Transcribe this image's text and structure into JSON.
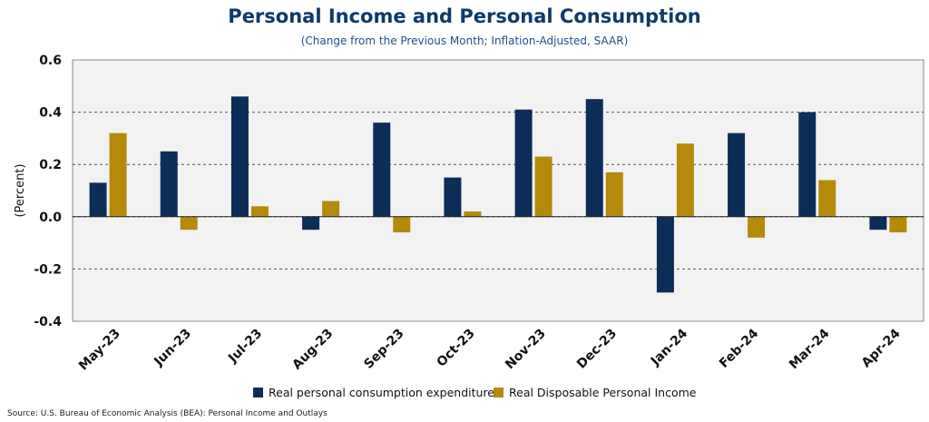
{
  "title": "Personal Income and Personal Consumption",
  "subtitle": "(Change from the Previous Month; Inflation-Adjusted, SAAR)",
  "source": "Source: U.S. Bureau of Economic Analysis (BEA): Personal Income and Outlays",
  "colors": {
    "pce": "#0c2d57",
    "income": "#b58a0a",
    "plot_bg": "#f2f2f2"
  },
  "chart_data": {
    "type": "bar",
    "categories": [
      "May-23",
      "Jun-23",
      "Jul-23",
      "Aug-23",
      "Sep-23",
      "Oct-23",
      "Nov-23",
      "Dec-23",
      "Jan-24",
      "Feb-24",
      "Mar-24",
      "Apr-24"
    ],
    "series": [
      {
        "name": "Real personal consumption expenditures",
        "values": [
          0.13,
          0.25,
          0.46,
          -0.05,
          0.36,
          0.15,
          0.41,
          0.45,
          -0.29,
          0.32,
          0.4,
          -0.05
        ]
      },
      {
        "name": "Real Disposable Personal Income",
        "values": [
          0.32,
          -0.05,
          0.04,
          0.06,
          -0.06,
          0.02,
          0.23,
          0.17,
          0.28,
          -0.08,
          0.14,
          -0.06
        ]
      }
    ],
    "ylabel": "(Percent)",
    "ylim": [
      -0.4,
      0.6
    ],
    "yticks": [
      "-0.4",
      "-0.2",
      "0.0",
      "0.2",
      "0.4",
      "0.6"
    ],
    "grid": true,
    "legend_position": "bottom"
  }
}
